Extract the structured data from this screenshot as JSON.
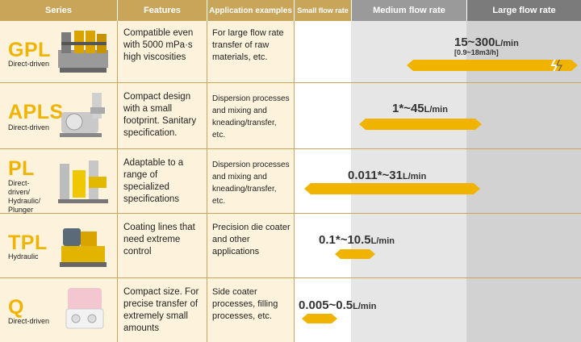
{
  "header": {
    "series": "Series",
    "features": "Features",
    "applications": "Application examples",
    "small": "Small flow rate",
    "medium": "Medium flow rate",
    "large": "Large flow rate"
  },
  "colors": {
    "gold": "#c9a55a",
    "cream": "#fdf3dc",
    "yellow": "#f0b400",
    "medium_bg": "#e6e6e6",
    "large_bg": "#d2d2d2"
  },
  "rows": [
    {
      "name": "GPL",
      "drive": "Direct-driven",
      "features": "Compatible even with 5000 mPa·s high viscosities",
      "applications": "For large flow rate transfer of raw materials, etc.",
      "range": "15~300",
      "unit": "L/min",
      "subrange": "[0.9~18m3/h]"
    },
    {
      "name": "APLS",
      "drive": "Direct-driven",
      "features": "Compact design with a small footprint. Sanitary specification.",
      "applications": "Dispersion processes and mixing and kneading/transfer, etc.",
      "range": "1*~45",
      "unit": "L/min"
    },
    {
      "name": "PL",
      "drive": "Direct-driven/ Hydraulic/ Plunger",
      "features": "Adaptable to a range of specialized specifications",
      "applications": "Dispersion processes and mixing and kneading/transfer, etc.",
      "range": "0.011*~31",
      "unit": "L/min"
    },
    {
      "name": "TPL",
      "drive": "Hydraulic",
      "features": "Coating lines that need extreme control",
      "applications": "Precision die coater and other applications",
      "range": "0.1*~10.5",
      "unit": "L/min"
    },
    {
      "name": "Q",
      "drive": "Direct-driven",
      "features": "Compact size. For precise transfer of extremely small amounts",
      "applications": "Side coater processes, filling processes, etc.",
      "range": "0.005~0.5",
      "unit": "L/min"
    }
  ]
}
